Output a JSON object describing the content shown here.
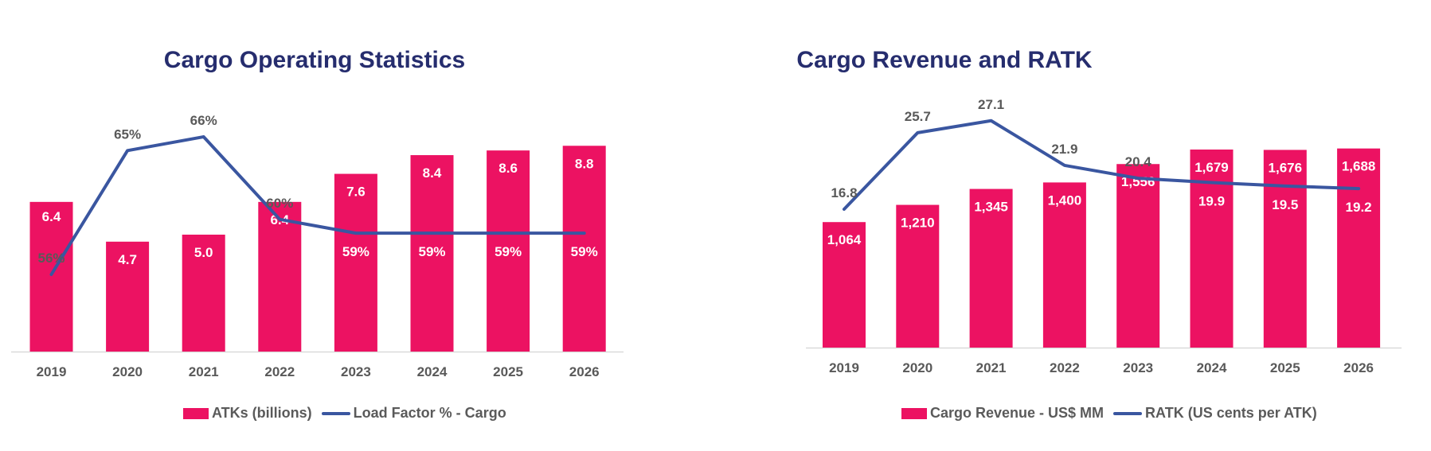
{
  "colors": {
    "bar": "#EC1262",
    "line": "#3A56A0",
    "title": "#262D6E",
    "tick": "#595959",
    "axis": "#D9D9D9"
  },
  "chart_data": [
    {
      "type": "bar",
      "title": "Cargo Operating Statistics",
      "categories": [
        "2019",
        "2020",
        "2021",
        "2022",
        "2023",
        "2024",
        "2025",
        "2026"
      ],
      "series": [
        {
          "name": "ATKs (billions)",
          "type": "bar",
          "values": [
            6.4,
            4.7,
            5.0,
            6.4,
            7.6,
            8.4,
            8.6,
            8.8
          ],
          "labels": [
            "6.4",
            "4.7",
            "5.0",
            "6.4",
            "7.6",
            "8.4",
            "8.6",
            "8.8"
          ]
        },
        {
          "name": "Load Factor % - Cargo",
          "type": "line",
          "values": [
            56,
            65,
            66,
            60,
            59,
            59,
            59,
            59
          ],
          "labels": [
            "56%",
            "65%",
            "66%",
            "60%",
            "59%",
            "59%",
            "59%",
            "59%"
          ]
        }
      ],
      "legend": "bottom",
      "grid": false
    },
    {
      "type": "bar",
      "title": "Cargo Revenue and RATK",
      "categories": [
        "2019",
        "2020",
        "2021",
        "2022",
        "2023",
        "2024",
        "2025",
        "2026"
      ],
      "series": [
        {
          "name": "Cargo Revenue - US$ MM",
          "type": "bar",
          "values": [
            1064,
            1210,
            1345,
            1400,
            1556,
            1679,
            1676,
            1688
          ],
          "labels": [
            "1,064",
            "1,210",
            "1,345",
            "1,400",
            "1,556",
            "1,679",
            "1,676",
            "1,688"
          ]
        },
        {
          "name": "RATK (US cents per ATK)",
          "type": "line",
          "values": [
            16.8,
            25.7,
            27.1,
            21.9,
            20.4,
            19.9,
            19.5,
            19.2
          ],
          "labels": [
            "16.8",
            "25.7",
            "27.1",
            "21.9",
            "20.4",
            "19.9",
            "19.5",
            "19.2"
          ]
        }
      ],
      "legend": "bottom",
      "grid": false
    }
  ]
}
